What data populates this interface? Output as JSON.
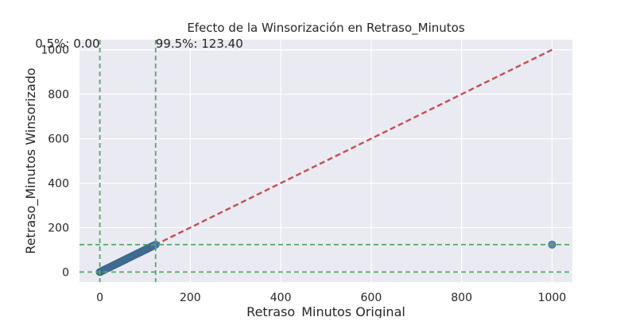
{
  "chart_data": {
    "type": "scatter",
    "title": "Efecto de la Winsorización en Retraso_Minutos",
    "xlabel": "Retraso_Minutos Original",
    "ylabel": "Retraso_Minutos Winsorizado",
    "xlim": [
      -45,
      1045
    ],
    "ylim": [
      -45,
      1045
    ],
    "xticks": [
      0,
      200,
      400,
      600,
      800,
      1000
    ],
    "yticks": [
      0,
      200,
      400,
      600,
      800,
      1000
    ],
    "grid": true,
    "series": [
      {
        "x": [
          0,
          2,
          4,
          6,
          8,
          10,
          12,
          14,
          16,
          18,
          20,
          22,
          24,
          26,
          28,
          30,
          32,
          34,
          36,
          38,
          40,
          42,
          44,
          46,
          48,
          50,
          52,
          54,
          56,
          58,
          60,
          62,
          64,
          66,
          68,
          70,
          72,
          74,
          76,
          78,
          80,
          82,
          84,
          86,
          88,
          90,
          92,
          94,
          96,
          98,
          100,
          102,
          104,
          106,
          108,
          110,
          112,
          114,
          116,
          118,
          120,
          123.4,
          1000
        ],
        "y": [
          0,
          2,
          4,
          6,
          8,
          10,
          12,
          14,
          16,
          18,
          20,
          22,
          24,
          26,
          28,
          30,
          32,
          34,
          36,
          38,
          40,
          42,
          44,
          46,
          48,
          50,
          52,
          54,
          56,
          58,
          60,
          62,
          64,
          66,
          68,
          70,
          72,
          74,
          76,
          78,
          80,
          82,
          84,
          86,
          88,
          90,
          92,
          94,
          96,
          98,
          100,
          102,
          104,
          106,
          108,
          110,
          112,
          114,
          116,
          118,
          120,
          123.4,
          123.4
        ],
        "color": "#4c72b0"
      }
    ],
    "reference_line": {
      "from": [
        0,
        0
      ],
      "to": [
        1000,
        1000
      ],
      "style": "dashed",
      "color": "#c44e52"
    },
    "thresholds": [
      {
        "value": 0,
        "text": "0.5%: 0.00",
        "color": "#55a868"
      },
      {
        "value": 123.4,
        "text": "99.5%: 123.40",
        "color": "#55a868"
      }
    ],
    "colors": {
      "background": "#eaeaf2",
      "grid": "#ffffff"
    }
  }
}
